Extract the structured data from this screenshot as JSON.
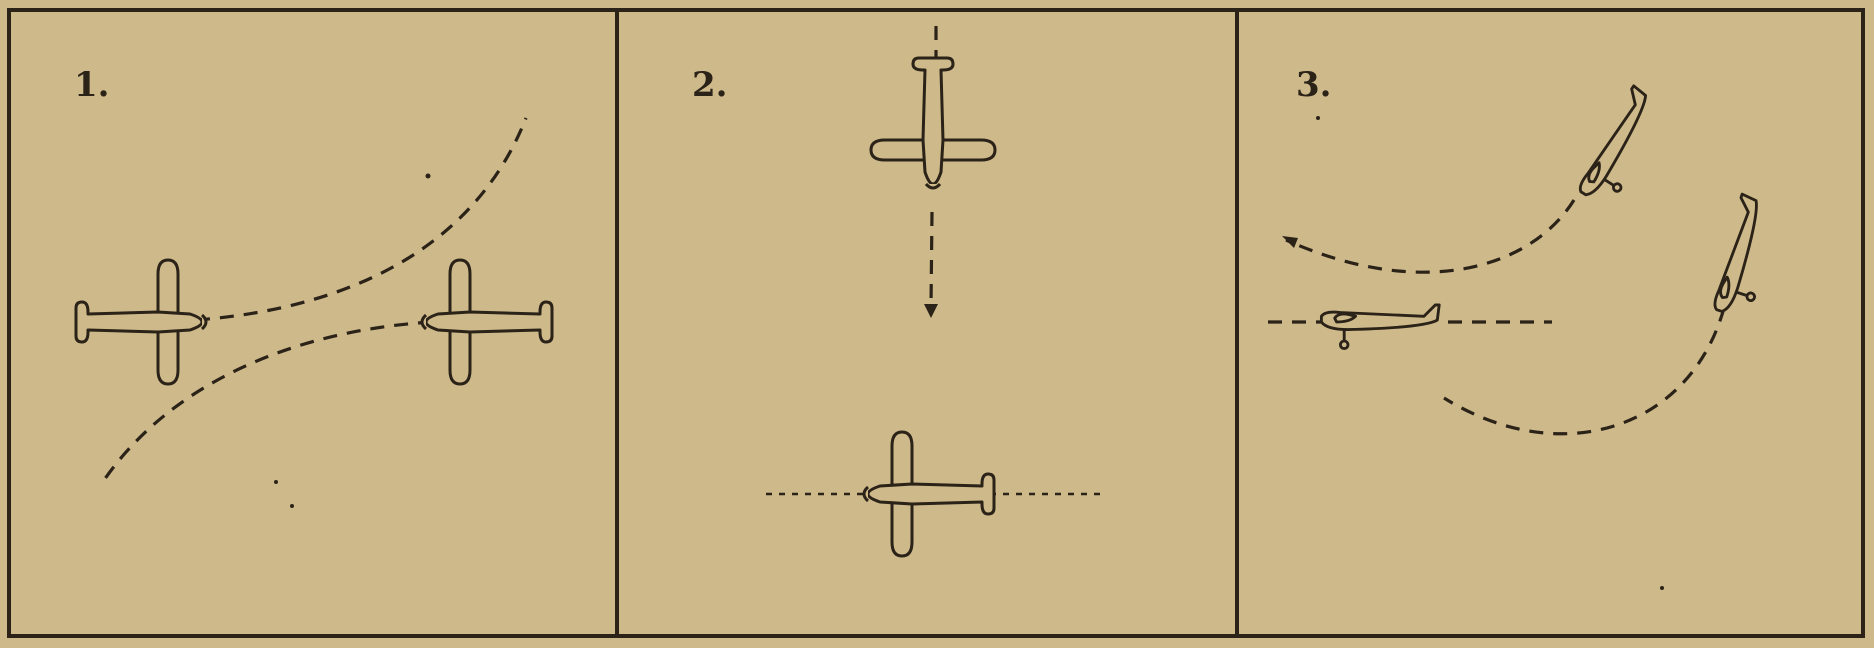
{
  "panels": [
    {
      "label": "1."
    },
    {
      "label": "2."
    },
    {
      "label": "3."
    }
  ],
  "colors": {
    "paper": "#cdb98a",
    "ink": "#2b2218"
  }
}
